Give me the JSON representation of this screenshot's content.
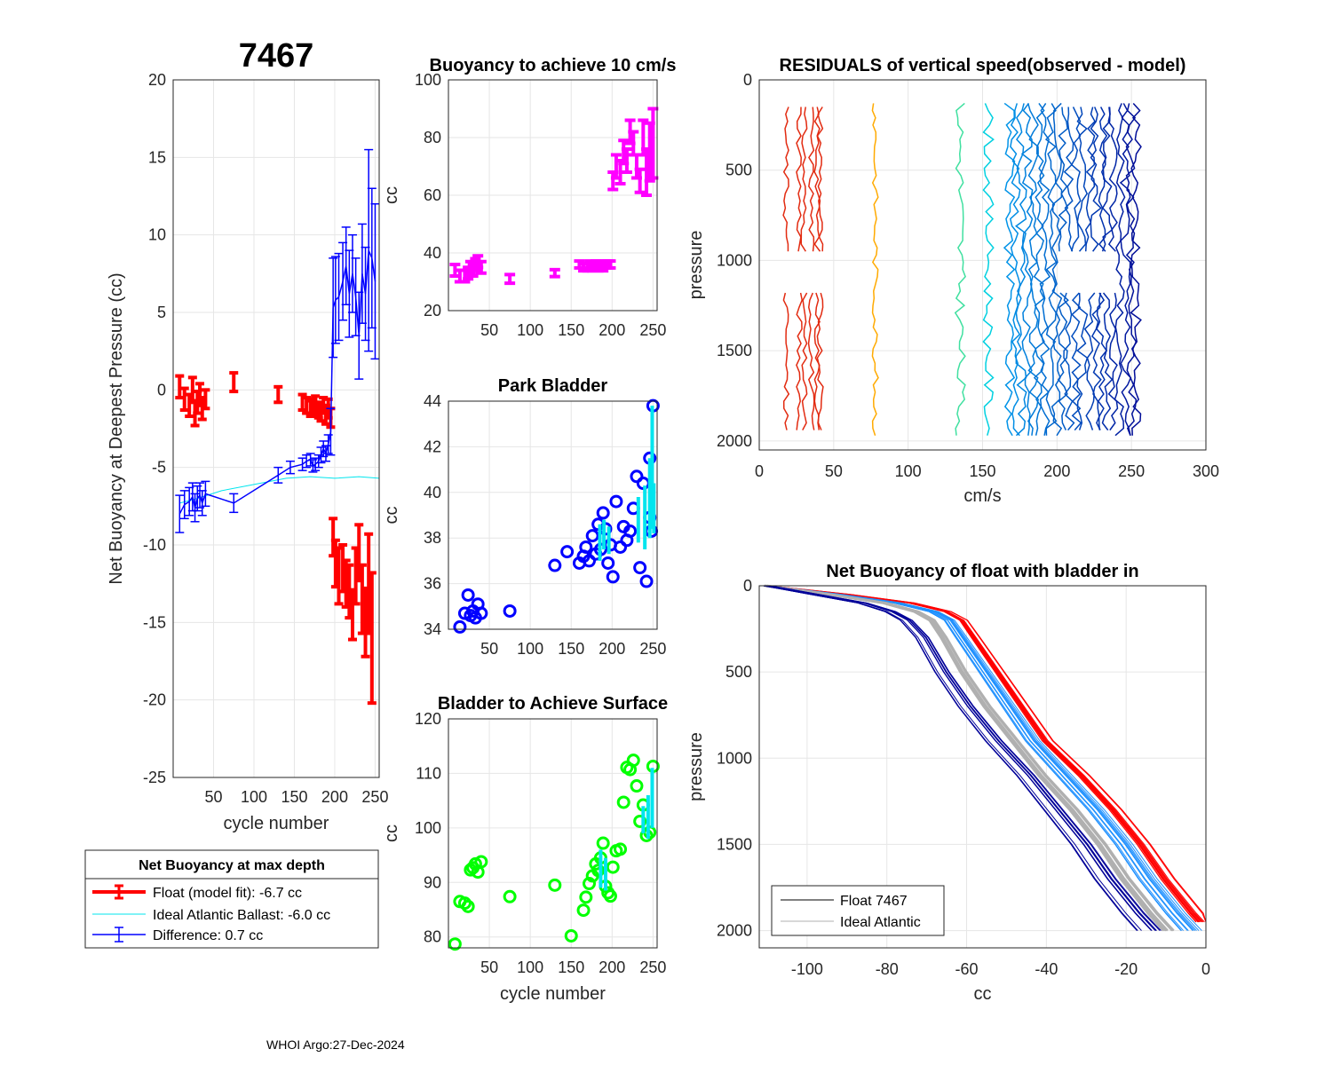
{
  "figure": {
    "float_id": "7467",
    "footer": "WHOI Argo:27-Dec-2024"
  },
  "colors": {
    "red": "#ff0000",
    "blue": "#0000ff",
    "cyan": "#00e5ee",
    "magenta": "#ff00ff",
    "green": "#00ff00",
    "gray": "#b0b0b0",
    "grid": "#e6e6e6",
    "axis": "#262626"
  },
  "legend": {
    "title": "Net Buoyancy at max depth",
    "entries": [
      "Float (model fit):  -6.7 cc",
      "Ideal Atlantic Ballast:  -6.0 cc",
      "Difference:   0.7 cc"
    ]
  },
  "legend2": {
    "entries": [
      "Float 7467",
      "Ideal Atlantic"
    ]
  },
  "chart_data": [
    {
      "id": "net_buoyancy",
      "type": "scatter",
      "title": "7467",
      "xlabel": "cycle number",
      "ylabel": "Net Buoyancy at Deepest Pressure (cc)",
      "xlim": [
        0,
        255
      ],
      "ylim": [
        -25,
        20
      ],
      "xticks": [
        50,
        100,
        150,
        200,
        250
      ],
      "yticks": [
        20,
        15,
        10,
        5,
        0,
        -5,
        -10,
        -15,
        -20,
        -25
      ],
      "series": [
        {
          "name": "Float (model fit)",
          "color": "red",
          "x": [
            8,
            14,
            20,
            24,
            27,
            30,
            33,
            36,
            40,
            75,
            130,
            160,
            165,
            170,
            173,
            176,
            180,
            183,
            186,
            189,
            192,
            195,
            198,
            201,
            205,
            210,
            214,
            218,
            222,
            226,
            230,
            234,
            238,
            242,
            246
          ],
          "y": [
            0.2,
            -0.6,
            -1.0,
            0.0,
            -1.5,
            -0.8,
            -0.3,
            -1.2,
            -0.6,
            0.5,
            -0.3,
            -0.8,
            -1.0,
            -1.2,
            -1.1,
            -0.9,
            -1.3,
            -1.5,
            -1.0,
            -1.6,
            -1.2,
            -1.8,
            -9.5,
            -11.2,
            -12.0,
            -11.5,
            -12.5,
            -13.0,
            -14.5,
            -12.0,
            -10.5,
            -13.5,
            -15.0,
            -12.5,
            -16.0
          ],
          "err": [
            0.7,
            0.7,
            0.7,
            0.8,
            0.8,
            0.7,
            0.7,
            0.7,
            0.6,
            0.6,
            0.5,
            0.5,
            0.5,
            0.5,
            0.5,
            0.5,
            0.5,
            0.5,
            0.5,
            0.6,
            0.6,
            0.6,
            1.2,
            1.5,
            1.8,
            1.5,
            1.5,
            1.7,
            1.6,
            1.8,
            1.8,
            2.2,
            2.2,
            3.2,
            4.2
          ]
        },
        {
          "name": "Ideal Atlantic Ballast",
          "color": "cyan",
          "x": [
            8,
            30,
            60,
            100,
            140,
            170,
            200,
            230,
            255
          ],
          "y": [
            -7.3,
            -7.0,
            -6.5,
            -6.1,
            -5.7,
            -5.6,
            -5.7,
            -5.6,
            -5.7
          ]
        },
        {
          "name": "Difference",
          "color": "blue",
          "x": [
            8,
            14,
            20,
            24,
            27,
            30,
            33,
            36,
            40,
            75,
            130,
            145,
            160,
            165,
            170,
            173,
            176,
            180,
            183,
            186,
            189,
            192,
            195,
            198,
            201,
            205,
            210,
            214,
            218,
            222,
            226,
            230,
            234,
            238,
            242,
            246,
            250
          ],
          "y": [
            -8.0,
            -7.4,
            -7.2,
            -6.9,
            -7.6,
            -7.0,
            -6.8,
            -7.3,
            -6.7,
            -7.3,
            -5.5,
            -5.0,
            -4.8,
            -4.6,
            -4.5,
            -4.9,
            -4.8,
            -4.6,
            -4.2,
            -3.8,
            -4.1,
            -3.5,
            -2.7,
            5.3,
            5.8,
            6.0,
            7.0,
            8.0,
            6.2,
            7.5,
            6.0,
            3.5,
            7.5,
            6.2,
            9.0,
            8.5,
            7.0
          ],
          "err": [
            1.2,
            0.9,
            0.9,
            0.9,
            0.9,
            0.8,
            0.8,
            0.8,
            0.8,
            0.6,
            0.5,
            0.4,
            0.4,
            0.4,
            0.4,
            0.4,
            0.4,
            0.4,
            0.5,
            0.5,
            0.5,
            0.6,
            1.5,
            3.2,
            2.8,
            2.8,
            2.5,
            2.5,
            2.8,
            2.5,
            2.5,
            2.8,
            3.2,
            3.0,
            6.5,
            4.5,
            5.0
          ]
        }
      ]
    },
    {
      "id": "buoyancy_10cms",
      "type": "scatter",
      "title": "Buoyancy to achieve 10 cm/s",
      "xlabel": "",
      "ylabel": "cc",
      "xlim": [
        0,
        255
      ],
      "ylim": [
        20,
        100
      ],
      "xticks": [
        50,
        100,
        150,
        200,
        250
      ],
      "yticks": [
        100,
        80,
        60,
        40,
        20
      ],
      "series": [
        {
          "name": "buoyancy",
          "color": "magenta",
          "x": [
            8,
            14,
            20,
            24,
            27,
            30,
            33,
            36,
            40,
            75,
            130,
            160,
            165,
            170,
            173,
            176,
            180,
            183,
            186,
            189,
            192,
            195,
            198,
            201,
            205,
            210,
            214,
            218,
            222,
            226,
            230,
            234,
            238,
            242,
            246,
            250
          ],
          "y": [
            34,
            32,
            32,
            33,
            35,
            34,
            36,
            37,
            35,
            31,
            33,
            36,
            35,
            35,
            36,
            35,
            36,
            35,
            36,
            35,
            36,
            36,
            36,
            65,
            70,
            68,
            75,
            72,
            82,
            78,
            70,
            65,
            80,
            68,
            75,
            78
          ],
          "err": [
            2,
            2,
            2,
            2,
            2,
            2,
            2,
            2,
            2,
            1.5,
            1.2,
            1.2,
            1.2,
            1.2,
            1.2,
            1.2,
            1.2,
            1.2,
            1.2,
            1.2,
            1.2,
            1.2,
            1.2,
            3,
            4,
            4,
            4,
            4,
            4,
            4,
            4,
            4,
            6,
            8,
            10,
            12
          ]
        }
      ]
    },
    {
      "id": "park_bladder",
      "type": "scatter",
      "title": "Park Bladder",
      "xlabel": "",
      "ylabel": "cc",
      "xlim": [
        0,
        255
      ],
      "ylim": [
        34,
        44
      ],
      "xticks": [
        50,
        100,
        150,
        200,
        250
      ],
      "yticks": [
        44,
        42,
        40,
        38,
        36,
        34
      ],
      "series": [
        {
          "name": "park",
          "color": "blue",
          "x": [
            14,
            20,
            24,
            27,
            30,
            33,
            36,
            40,
            75,
            130,
            145,
            160,
            165,
            168,
            172,
            176,
            180,
            183,
            186,
            189,
            192,
            195,
            198,
            201,
            205,
            210,
            214,
            218,
            222,
            226,
            230,
            234,
            238,
            242,
            246,
            250,
            246,
            248
          ],
          "y": [
            34.1,
            34.7,
            35.5,
            34.6,
            34.8,
            34.5,
            35.1,
            34.7,
            34.8,
            36.8,
            37.4,
            36.9,
            37.2,
            37.6,
            37.0,
            38.1,
            37.3,
            38.6,
            37.5,
            39.1,
            38.4,
            36.9,
            37.7,
            36.3,
            39.6,
            37.6,
            38.5,
            37.9,
            38.3,
            39.3,
            40.7,
            36.7,
            40.4,
            36.1,
            41.5,
            43.8,
            38.9,
            38.3
          ]
        },
        {
          "name": "park-fit",
          "color": "cyan",
          "segments": [
            [
              [
                185,
                37.0
              ],
              [
                185,
                38.6
              ]
            ],
            [
              [
                190,
                37.5
              ],
              [
                190,
                38.8
              ]
            ],
            [
              [
                196,
                37.3
              ],
              [
                196,
                38.5
              ]
            ],
            [
              [
                232,
                37.8
              ],
              [
                232,
                39.8
              ]
            ],
            [
              [
                240,
                37.5
              ],
              [
                240,
                40.3
              ]
            ],
            [
              [
                246,
                38.0
              ],
              [
                246,
                41.5
              ]
            ],
            [
              [
                249,
                38.4
              ],
              [
                249,
                43.8
              ]
            ],
            [
              [
                251,
                38.2
              ],
              [
                251,
                40.4
              ]
            ]
          ]
        }
      ]
    },
    {
      "id": "bladder_surface",
      "type": "scatter",
      "title": "Bladder to Achieve Surface",
      "xlabel": "cycle number",
      "ylabel": "cc",
      "xlim": [
        0,
        255
      ],
      "ylim": [
        78,
        120
      ],
      "xticks": [
        50,
        100,
        150,
        200,
        250
      ],
      "yticks": [
        120,
        110,
        100,
        90,
        80
      ],
      "series": [
        {
          "name": "surface",
          "color": "green",
          "x": [
            8,
            14,
            20,
            24,
            27,
            30,
            33,
            36,
            40,
            75,
            130,
            150,
            165,
            168,
            172,
            176,
            180,
            183,
            186,
            189,
            192,
            195,
            198,
            201,
            205,
            210,
            214,
            218,
            222,
            226,
            230,
            234,
            238,
            242,
            246,
            250
          ],
          "y": [
            78.7,
            86.5,
            86.2,
            85.6,
            92.3,
            92.7,
            93.4,
            91.9,
            93.8,
            87.4,
            89.5,
            80.2,
            84.9,
            87.3,
            89.8,
            91.2,
            93.4,
            92.2,
            94.5,
            97.2,
            89.3,
            88.1,
            87.5,
            92.8,
            95.8,
            96.1,
            104.7,
            111.1,
            110.7,
            112.4,
            107.7,
            101.2,
            104.2,
            98.6,
            99.2,
            111.3
          ]
        },
        {
          "name": "surface-fit",
          "color": "cyan",
          "segments": [
            [
              [
                186,
                89.0
              ],
              [
                186,
                96.0
              ]
            ],
            [
              [
                192,
                88.5
              ],
              [
                192,
                94.5
              ]
            ],
            [
              [
                238,
                99.0
              ],
              [
                238,
                104.0
              ]
            ],
            [
              [
                244,
                98.0
              ],
              [
                244,
                106.0
              ]
            ],
            [
              [
                249,
                100.0
              ],
              [
                249,
                111.0
              ]
            ]
          ]
        }
      ]
    },
    {
      "id": "residuals",
      "type": "line",
      "title": "RESIDUALS of vertical speed(observed - model)",
      "xlabel": "cm/s",
      "ylabel": "pressure",
      "xlim": [
        0,
        300
      ],
      "ylim": [
        2050,
        0
      ],
      "xticks": [
        0,
        50,
        100,
        150,
        200,
        250,
        300
      ],
      "yticks": [
        0,
        500,
        1000,
        1500,
        2000
      ],
      "profile_offsets": [
        18,
        27,
        30,
        35,
        39,
        41,
        78,
        135,
        154,
        168,
        172,
        176,
        180,
        184,
        188,
        192,
        196,
        200,
        204,
        208,
        213,
        217,
        222,
        226,
        230,
        234,
        238,
        242,
        246,
        250,
        253
      ]
    },
    {
      "id": "net_buoyancy_profile",
      "type": "line",
      "title": "Net Buoyancy of float with bladder in",
      "xlabel": "cc",
      "ylabel": "pressure",
      "xlim": [
        -112,
        0
      ],
      "ylim": [
        2100,
        0
      ],
      "xticks": [
        -100,
        -80,
        -60,
        -40,
        -20,
        0
      ],
      "yticks": [
        0,
        500,
        1000,
        1500,
        2000
      ],
      "series": [
        {
          "name": "red-bundle",
          "color": "red",
          "p": [
            0,
            50,
            100,
            150,
            200,
            300,
            500,
            700,
            900,
            1100,
            1300,
            1500,
            1700,
            1900,
            1950
          ],
          "x": [
            -110,
            -90,
            -74,
            -65,
            -61,
            -58,
            -52,
            -46,
            -40,
            -31,
            -23,
            -16,
            -10,
            -3,
            -1
          ]
        },
        {
          "name": "light-blue-bundle",
          "color": "#1e90ff",
          "p": [
            0,
            50,
            100,
            150,
            200,
            300,
            500,
            700,
            900,
            1100,
            1300,
            1500,
            1700,
            1900,
            2000
          ],
          "x": [
            -110,
            -92,
            -77,
            -68,
            -64,
            -61,
            -55,
            -49,
            -43,
            -35,
            -27,
            -20,
            -14,
            -7,
            -3
          ]
        },
        {
          "name": "gray-ideal",
          "color": "gray",
          "p": [
            0,
            50,
            100,
            150,
            200,
            300,
            500,
            700,
            900,
            1100,
            1300,
            1500,
            1700,
            1900,
            2000
          ],
          "x": [
            -110,
            -94,
            -80,
            -72,
            -68,
            -65,
            -60,
            -54,
            -47,
            -40,
            -32,
            -25,
            -19,
            -12,
            -8
          ]
        },
        {
          "name": "dark-blue-bundle",
          "color": "#000099",
          "p": [
            0,
            50,
            100,
            150,
            200,
            300,
            500,
            700,
            900,
            1100,
            1300,
            1500,
            1700,
            1900,
            2000
          ],
          "x": [
            -110,
            -98,
            -86,
            -79,
            -75,
            -71,
            -66,
            -60,
            -53,
            -45,
            -38,
            -31,
            -25,
            -18,
            -14
          ]
        }
      ]
    }
  ]
}
